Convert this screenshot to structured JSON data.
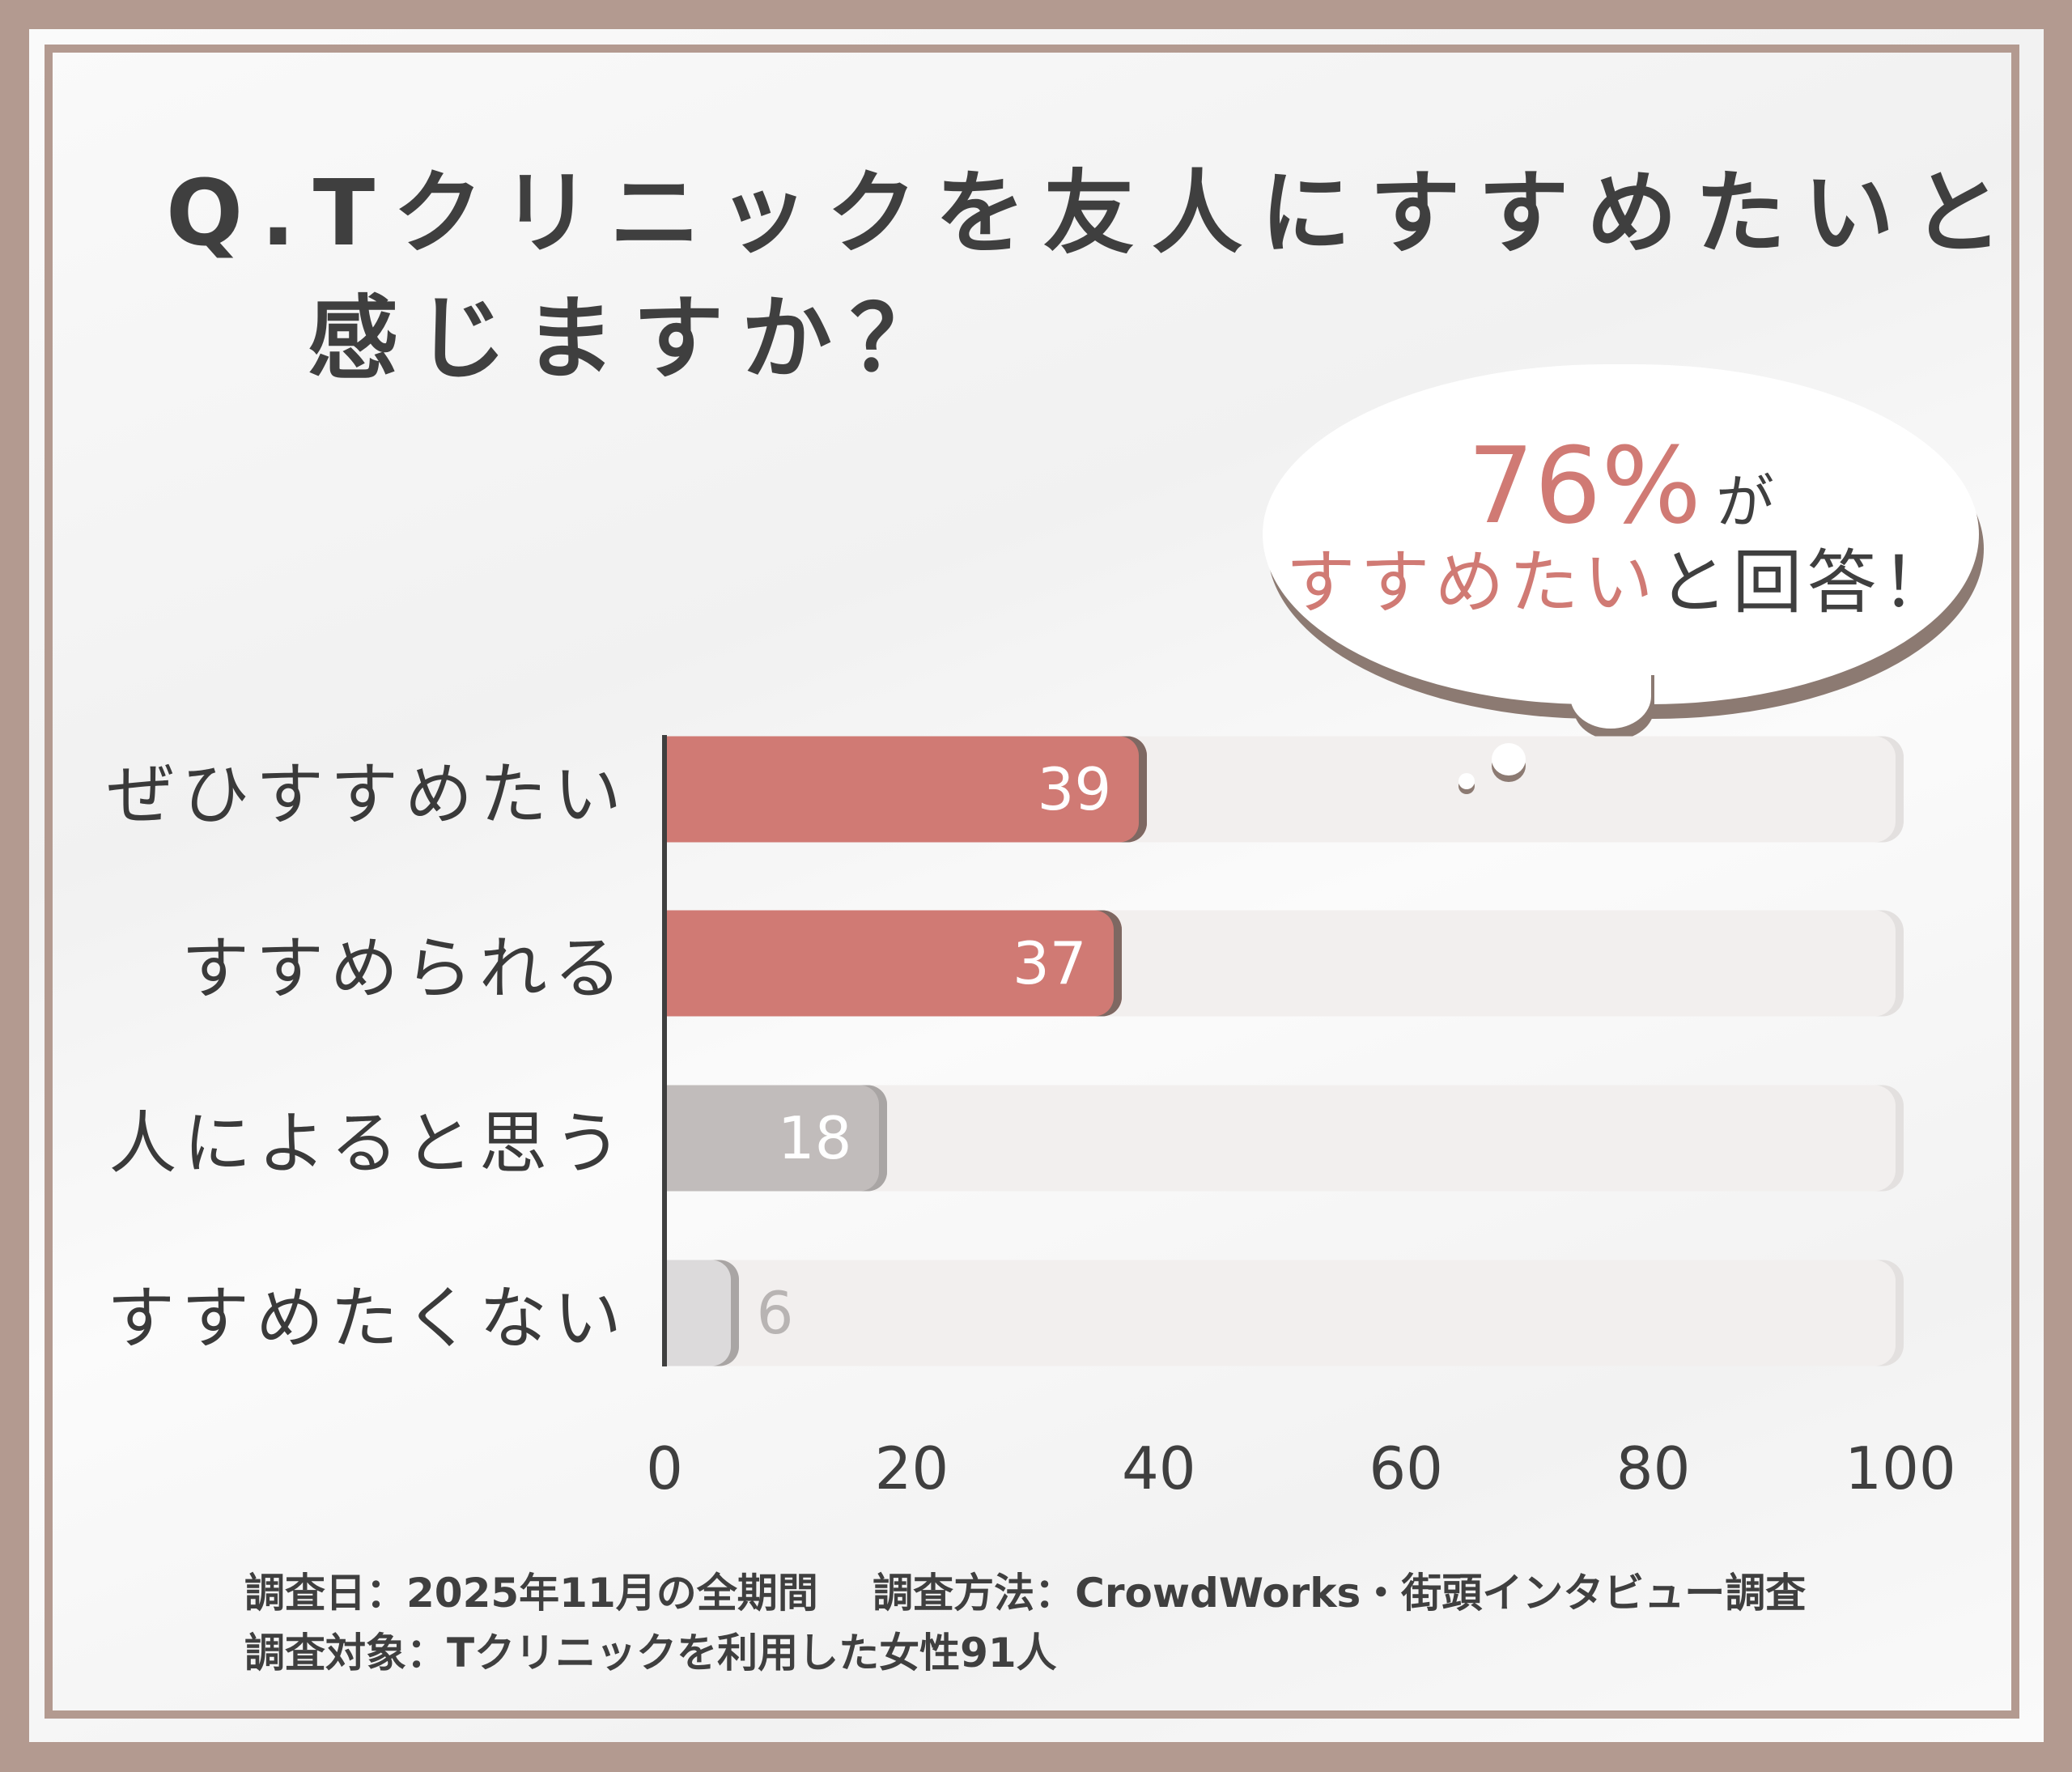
{
  "title": {
    "line1": "Q.Tクリニックを友人にすすめたいと",
    "line2": "感じますか？"
  },
  "callout": {
    "percent": "76%",
    "particle": "が",
    "highlight": "すすめたい",
    "rest": "と回答！"
  },
  "footer": {
    "line1": "調査日：2025年11月の全期間　 調査方法：CrowdWorks・街頭インタビュー調査",
    "line2": "調査対象：Tクリニックを利用した女性91人"
  },
  "colors": {
    "highlight": "#d07a74",
    "neutral": "#c1bcbb",
    "negative": "#dcdadb",
    "track": "#f2efee",
    "frame": "#b39a90"
  },
  "chart_data": {
    "type": "bar",
    "orientation": "horizontal",
    "categories": [
      "ぜひすすめたい",
      "すすめられる",
      "人によると思う",
      "すすめたくない"
    ],
    "values": [
      39,
      37,
      18,
      6
    ],
    "xlim": [
      0,
      100
    ],
    "xticks": [
      "0",
      "20",
      "40",
      "60",
      "80",
      "100"
    ],
    "grid": false,
    "bar_colors": [
      "#d07a74",
      "#d07a74",
      "#c1bcbb",
      "#dcdadb"
    ]
  }
}
